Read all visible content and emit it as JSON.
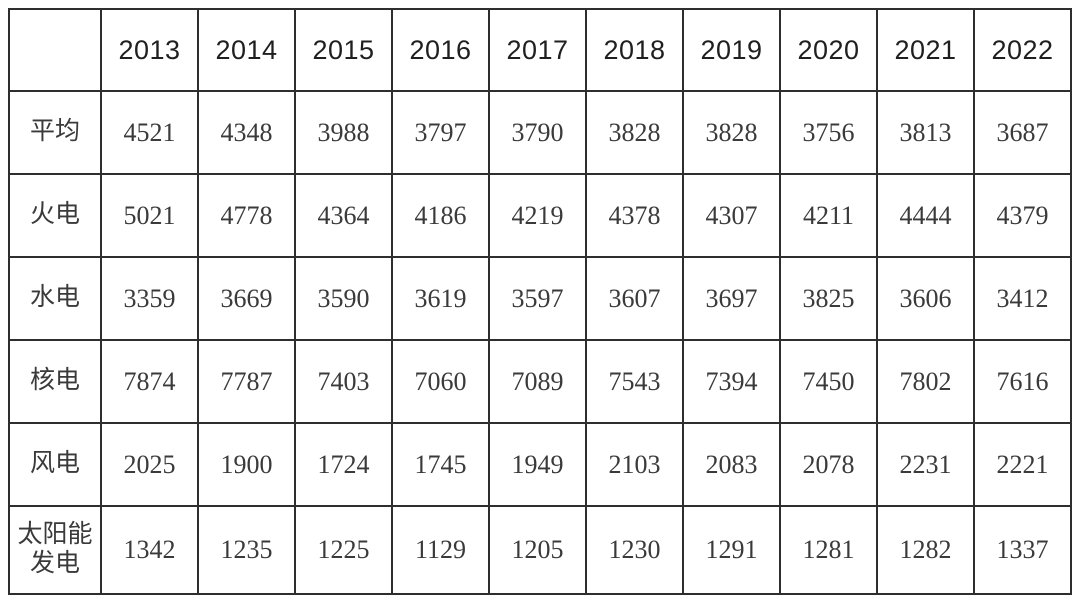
{
  "table": {
    "corner_label": "",
    "columns": [
      "2013",
      "2014",
      "2015",
      "2016",
      "2017",
      "2018",
      "2019",
      "2020",
      "2021",
      "2022"
    ],
    "rows": [
      {
        "label": "平均",
        "values": [
          "4521",
          "4348",
          "3988",
          "3797",
          "3790",
          "3828",
          "3828",
          "3756",
          "3813",
          "3687"
        ]
      },
      {
        "label": "火电",
        "values": [
          "5021",
          "4778",
          "4364",
          "4186",
          "4219",
          "4378",
          "4307",
          "4211",
          "4444",
          "4379"
        ]
      },
      {
        "label": "水电",
        "values": [
          "3359",
          "3669",
          "3590",
          "3619",
          "3597",
          "3607",
          "3697",
          "3825",
          "3606",
          "3412"
        ]
      },
      {
        "label": "核电",
        "values": [
          "7874",
          "7787",
          "7403",
          "7060",
          "7089",
          "7543",
          "7394",
          "7450",
          "7802",
          "7616"
        ]
      },
      {
        "label": "风电",
        "values": [
          "2025",
          "1900",
          "1724",
          "1745",
          "1949",
          "2103",
          "2083",
          "2078",
          "2231",
          "2221"
        ]
      },
      {
        "label": "太阳能发电",
        "values": [
          "1342",
          "1235",
          "1225",
          "1129",
          "1205",
          "1230",
          "1291",
          "1281",
          "1282",
          "1337"
        ]
      }
    ]
  },
  "chart_data": {
    "type": "table",
    "title": "",
    "categories": [
      "2013",
      "2014",
      "2015",
      "2016",
      "2017",
      "2018",
      "2019",
      "2020",
      "2021",
      "2022"
    ],
    "series": [
      {
        "name": "平均",
        "values": [
          4521,
          4348,
          3988,
          3797,
          3790,
          3828,
          3828,
          3756,
          3813,
          3687
        ]
      },
      {
        "name": "火电",
        "values": [
          5021,
          4778,
          4364,
          4186,
          4219,
          4378,
          4307,
          4211,
          4444,
          4379
        ]
      },
      {
        "name": "水电",
        "values": [
          3359,
          3669,
          3590,
          3619,
          3597,
          3607,
          3697,
          3825,
          3606,
          3412
        ]
      },
      {
        "name": "核电",
        "values": [
          7874,
          7787,
          7403,
          7060,
          7089,
          7543,
          7394,
          7450,
          7802,
          7616
        ]
      },
      {
        "name": "风电",
        "values": [
          2025,
          1900,
          1724,
          1745,
          1949,
          2103,
          2083,
          2078,
          2231,
          2221
        ]
      },
      {
        "name": "太阳能发电",
        "values": [
          1342,
          1235,
          1225,
          1129,
          1205,
          1230,
          1291,
          1281,
          1282,
          1337
        ]
      }
    ]
  },
  "colors": {
    "border": "#2e2e2e",
    "text": "#3a3a3a",
    "header_text": "#1f1f1f",
    "background": "#ffffff"
  }
}
